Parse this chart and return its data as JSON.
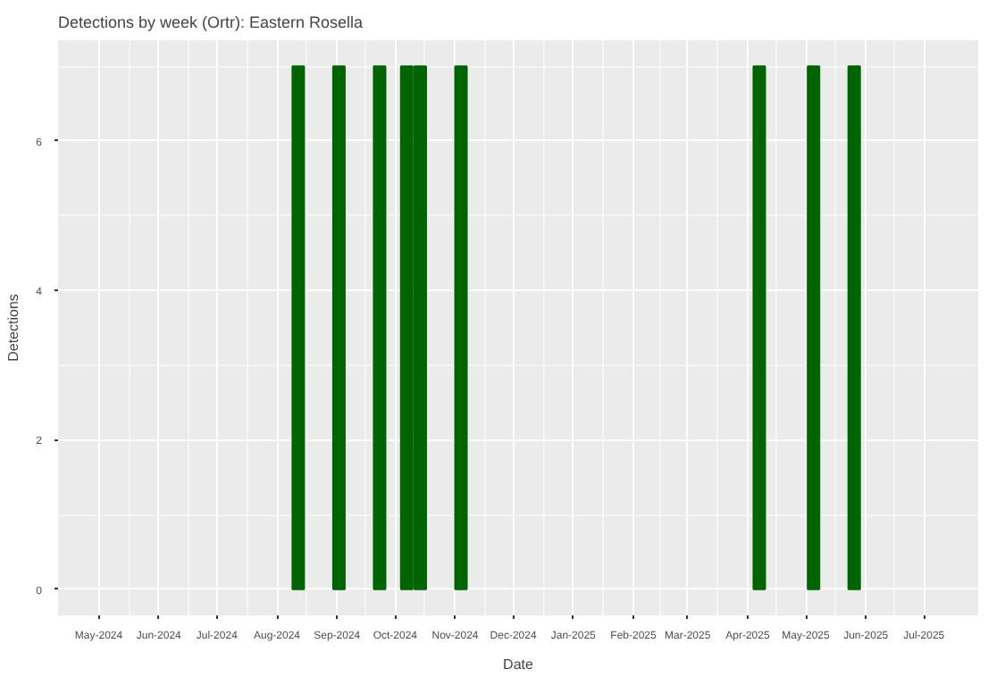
{
  "chart_data": {
    "type": "bar",
    "title": "Detections by week (Ortr): Eastern Rosella",
    "xlabel": "Date",
    "ylabel": "Detections",
    "x": [
      "2024-08-12",
      "2024-09-02",
      "2024-09-23",
      "2024-10-07",
      "2024-10-14",
      "2024-11-04",
      "2025-04-07",
      "2025-05-05",
      "2025-05-26"
    ],
    "values": [
      7,
      7,
      7,
      7,
      7,
      7,
      7,
      7,
      7
    ],
    "color": "#006400",
    "xlim": [
      "2024-04-10",
      "2025-07-29"
    ],
    "ylim": [
      -0.35,
      7.35
    ],
    "yticks": [
      0,
      2,
      4,
      6
    ],
    "xticks": [
      {
        "value": "2024-05-01",
        "label": "May-2024"
      },
      {
        "value": "2024-06-01",
        "label": "Jun-2024"
      },
      {
        "value": "2024-07-01",
        "label": "Jul-2024"
      },
      {
        "value": "2024-08-01",
        "label": "Aug-2024"
      },
      {
        "value": "2024-09-01",
        "label": "Sep-2024"
      },
      {
        "value": "2024-10-01",
        "label": "Oct-2024"
      },
      {
        "value": "2024-11-01",
        "label": "Nov-2024"
      },
      {
        "value": "2024-12-01",
        "label": "Dec-2024"
      },
      {
        "value": "2025-01-01",
        "label": "Jan-2025"
      },
      {
        "value": "2025-02-01",
        "label": "Feb-2025"
      },
      {
        "value": "2025-03-01",
        "label": "Mar-2025"
      },
      {
        "value": "2025-04-01",
        "label": "Apr-2025"
      },
      {
        "value": "2025-05-01",
        "label": "May-2025"
      },
      {
        "value": "2025-06-01",
        "label": "Jun-2025"
      },
      {
        "value": "2025-07-01",
        "label": "Jul-2025"
      }
    ],
    "grid": true
  }
}
